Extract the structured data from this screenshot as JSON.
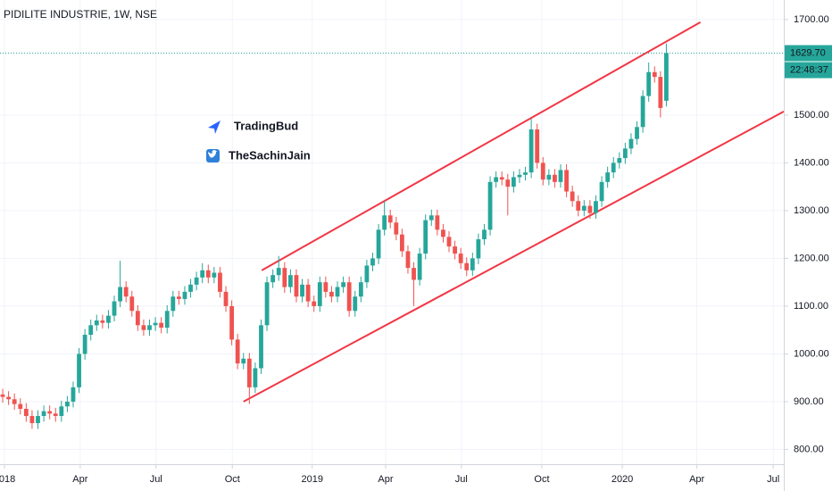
{
  "chart_data": {
    "type": "candlestick",
    "title": "PIDILITE INDUSTRIE, 1W, NSE",
    "up_color": "#26a69a",
    "down_color": "#ef5350",
    "grid": true,
    "open": [
      915,
      910,
      905,
      895,
      885,
      870,
      855,
      870,
      880,
      875,
      870,
      890,
      900,
      930,
      1000,
      1040,
      1060,
      1070,
      1065,
      1080,
      1110,
      1140,
      1120,
      1090,
      1060,
      1050,
      1060,
      1065,
      1055,
      1090,
      1120,
      1115,
      1130,
      1145,
      1160,
      1175,
      1160,
      1170,
      1130,
      1100,
      1030,
      980,
      990,
      930,
      970,
      1060,
      1150,
      1165,
      1180,
      1140,
      1165,
      1120,
      1145,
      1110,
      1100,
      1150,
      1130,
      1120,
      1140,
      1150,
      1090,
      1120,
      1150,
      1185,
      1200,
      1260,
      1290,
      1275,
      1250,
      1215,
      1180,
      1155,
      1210,
      1280,
      1290,
      1260,
      1245,
      1225,
      1210,
      1190,
      1175,
      1200,
      1240,
      1260,
      1360,
      1370,
      1365,
      1350,
      1370,
      1375,
      1380,
      1470,
      1400,
      1365,
      1375,
      1360,
      1385,
      1340,
      1320,
      1300,
      1310,
      1295,
      1320,
      1360,
      1380,
      1400,
      1410,
      1430,
      1450,
      1475,
      1540,
      1590,
      1580,
      1530
    ],
    "high": [
      927,
      922,
      917,
      907,
      897,
      882,
      882,
      892,
      892,
      887,
      902,
      912,
      942,
      1012,
      1052,
      1072,
      1082,
      1082,
      1092,
      1122,
      1195,
      1152,
      1132,
      1102,
      1072,
      1072,
      1077,
      1077,
      1102,
      1132,
      1132,
      1142,
      1157,
      1172,
      1190,
      1187,
      1182,
      1182,
      1142,
      1112,
      1042,
      1002,
      1002,
      982,
      1072,
      1162,
      1177,
      1205,
      1192,
      1177,
      1177,
      1157,
      1157,
      1122,
      1162,
      1162,
      1142,
      1152,
      1162,
      1162,
      1132,
      1162,
      1197,
      1212,
      1272,
      1320,
      1302,
      1287,
      1262,
      1227,
      1192,
      1222,
      1292,
      1302,
      1302,
      1272,
      1257,
      1237,
      1222,
      1202,
      1212,
      1252,
      1272,
      1372,
      1382,
      1382,
      1377,
      1382,
      1387,
      1392,
      1492,
      1482,
      1412,
      1387,
      1387,
      1397,
      1397,
      1352,
      1332,
      1322,
      1322,
      1332,
      1372,
      1392,
      1412,
      1422,
      1442,
      1462,
      1487,
      1552,
      1610,
      1602,
      1592,
      1650
    ],
    "low": [
      898,
      893,
      883,
      873,
      858,
      843,
      843,
      858,
      863,
      858,
      858,
      878,
      888,
      918,
      988,
      1028,
      1048,
      1053,
      1053,
      1068,
      1098,
      1108,
      1078,
      1048,
      1038,
      1038,
      1048,
      1043,
      1043,
      1078,
      1103,
      1103,
      1118,
      1133,
      1148,
      1148,
      1148,
      1118,
      1088,
      1018,
      968,
      968,
      895,
      918,
      958,
      1048,
      1138,
      1153,
      1128,
      1128,
      1108,
      1108,
      1098,
      1088,
      1088,
      1118,
      1108,
      1108,
      1128,
      1078,
      1078,
      1108,
      1138,
      1173,
      1188,
      1248,
      1263,
      1238,
      1203,
      1168,
      1100,
      1143,
      1198,
      1268,
      1248,
      1233,
      1213,
      1198,
      1178,
      1163,
      1163,
      1188,
      1228,
      1248,
      1348,
      1353,
      1290,
      1338,
      1358,
      1363,
      1368,
      1388,
      1353,
      1353,
      1348,
      1348,
      1328,
      1308,
      1288,
      1288,
      1283,
      1283,
      1308,
      1348,
      1368,
      1388,
      1398,
      1418,
      1438,
      1463,
      1528,
      1568,
      1495,
      1518
    ],
    "close": [
      910,
      905,
      895,
      885,
      870,
      855,
      870,
      880,
      875,
      870,
      890,
      900,
      930,
      1000,
      1040,
      1060,
      1070,
      1065,
      1080,
      1110,
      1140,
      1120,
      1090,
      1060,
      1050,
      1060,
      1065,
      1055,
      1090,
      1120,
      1115,
      1130,
      1145,
      1160,
      1175,
      1160,
      1170,
      1130,
      1100,
      1030,
      980,
      990,
      930,
      970,
      1060,
      1150,
      1165,
      1180,
      1140,
      1165,
      1120,
      1145,
      1110,
      1100,
      1150,
      1130,
      1120,
      1140,
      1150,
      1090,
      1120,
      1150,
      1185,
      1200,
      1260,
      1290,
      1275,
      1250,
      1215,
      1180,
      1155,
      1210,
      1280,
      1290,
      1260,
      1245,
      1225,
      1210,
      1190,
      1175,
      1200,
      1240,
      1260,
      1360,
      1370,
      1365,
      1350,
      1370,
      1375,
      1380,
      1470,
      1400,
      1365,
      1375,
      1360,
      1385,
      1340,
      1320,
      1300,
      1310,
      1295,
      1320,
      1360,
      1380,
      1400,
      1410,
      1430,
      1450,
      1475,
      1540,
      1590,
      1580,
      1515,
      1629.7
    ],
    "ylim": [
      769,
      1741
    ],
    "yticks": [
      {
        "value": 800,
        "label": "800.00"
      },
      {
        "value": 900,
        "label": "900.00"
      },
      {
        "value": 1000,
        "label": "1000.00"
      },
      {
        "value": 1100,
        "label": "1100.00"
      },
      {
        "value": 1200,
        "label": "1200.00"
      },
      {
        "value": 1300,
        "label": "1300.00"
      },
      {
        "value": 1400,
        "label": "1400.00"
      },
      {
        "value": 1500,
        "label": "1500.00"
      },
      {
        "value": 1700,
        "label": "1700.00"
      }
    ],
    "xlim": [
      -0.46,
      133
    ],
    "xticks": [
      {
        "value": 0.3,
        "label": "2018"
      },
      {
        "value": 13.2,
        "label": "Apr"
      },
      {
        "value": 26.1,
        "label": "Jul"
      },
      {
        "value": 39.1,
        "label": "Oct"
      },
      {
        "value": 52.7,
        "label": "2019"
      },
      {
        "value": 65.2,
        "label": "Apr"
      },
      {
        "value": 78.1,
        "label": "Jul"
      },
      {
        "value": 91.8,
        "label": "Oct"
      },
      {
        "value": 105.5,
        "label": "2020"
      },
      {
        "value": 118.2,
        "label": "Apr"
      },
      {
        "value": 131.2,
        "label": "Jul"
      }
    ],
    "last_price": {
      "value": 1629.7,
      "label": "1629.70"
    },
    "countdown": "22:48:37",
    "trend_lines": [
      {
        "color": "#f23645",
        "points": [
          [
            44.1,
            1174.8
          ],
          [
            118.8,
            1694.4
          ]
        ]
      },
      {
        "color": "#f23645",
        "points": [
          [
            41.0,
            900
          ],
          [
            133,
            1507.5
          ]
        ]
      }
    ],
    "annotations": [
      {
        "text": "TradingBud",
        "color": "#f23645"
      },
      {
        "text": "TheSachinJain",
        "color": "#4caf50"
      }
    ]
  }
}
